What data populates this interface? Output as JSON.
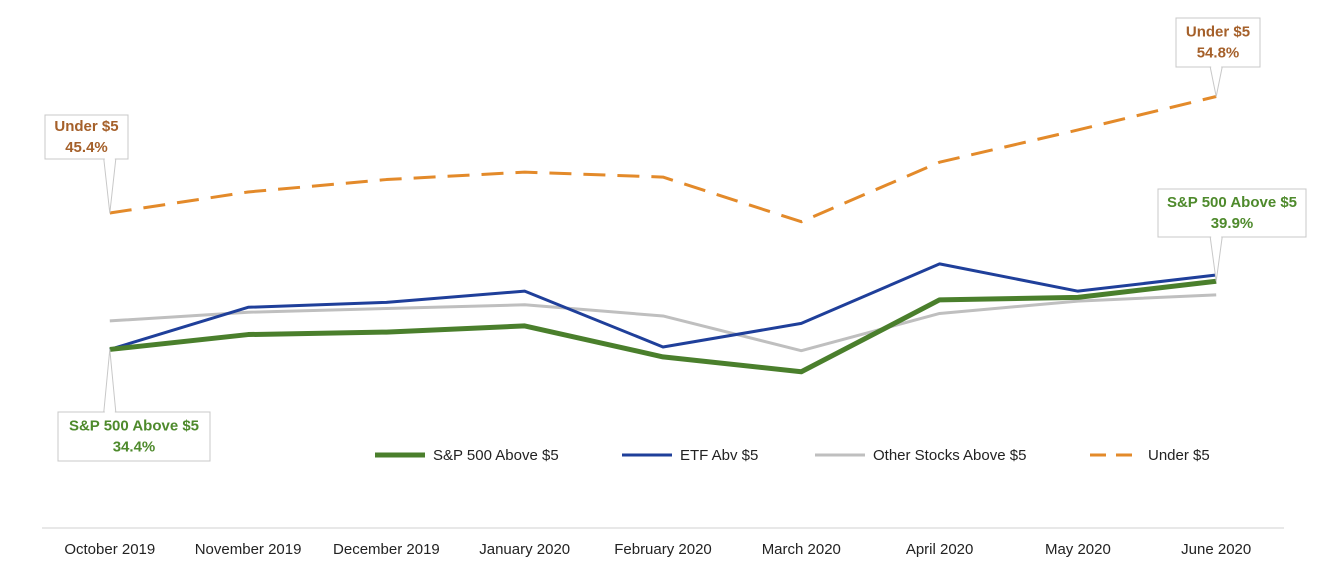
{
  "chart_data": {
    "type": "line",
    "categories": [
      "October 2019",
      "November 2019",
      "December 2019",
      "January 2020",
      "February 2020",
      "March 2020",
      "April 2020",
      "May 2020",
      "June 2020"
    ],
    "series": [
      {
        "name": "S&P 500 Above $5",
        "color": "#4a7f2c",
        "values": [
          34.4,
          35.6,
          35.8,
          36.3,
          33.8,
          32.6,
          38.4,
          38.6,
          39.9
        ]
      },
      {
        "name": "ETF Abv $5",
        "color": "#1f3f9a",
        "values": [
          34.4,
          37.8,
          38.2,
          39.1,
          34.6,
          36.5,
          41.3,
          39.1,
          40.4
        ]
      },
      {
        "name": "Other Stocks Above $5",
        "color": "#bfbfbf",
        "values": [
          36.7,
          37.4,
          37.7,
          38.0,
          37.1,
          34.3,
          37.3,
          38.3,
          38.8
        ]
      },
      {
        "name": "Under $5",
        "color": "#e38a2a",
        "dashed": true,
        "values": [
          45.4,
          47.1,
          48.1,
          48.7,
          48.3,
          44.7,
          49.5,
          52.1,
          54.8
        ]
      }
    ],
    "annotations": [
      {
        "text": "Under $5",
        "x": "October 2019",
        "value_label": "45.4%"
      },
      {
        "text": "Under $5",
        "x": "June 2020",
        "value_label": "54.8%"
      },
      {
        "text": "S&P 500 Above $5",
        "x": "June 2020",
        "value_label": "39.9%"
      },
      {
        "text": "S&P 500 Above $5",
        "x": "October 2019",
        "value_label": "34.4%"
      }
    ],
    "ylim": [
      20,
      60
    ],
    "legend": "bottom"
  }
}
